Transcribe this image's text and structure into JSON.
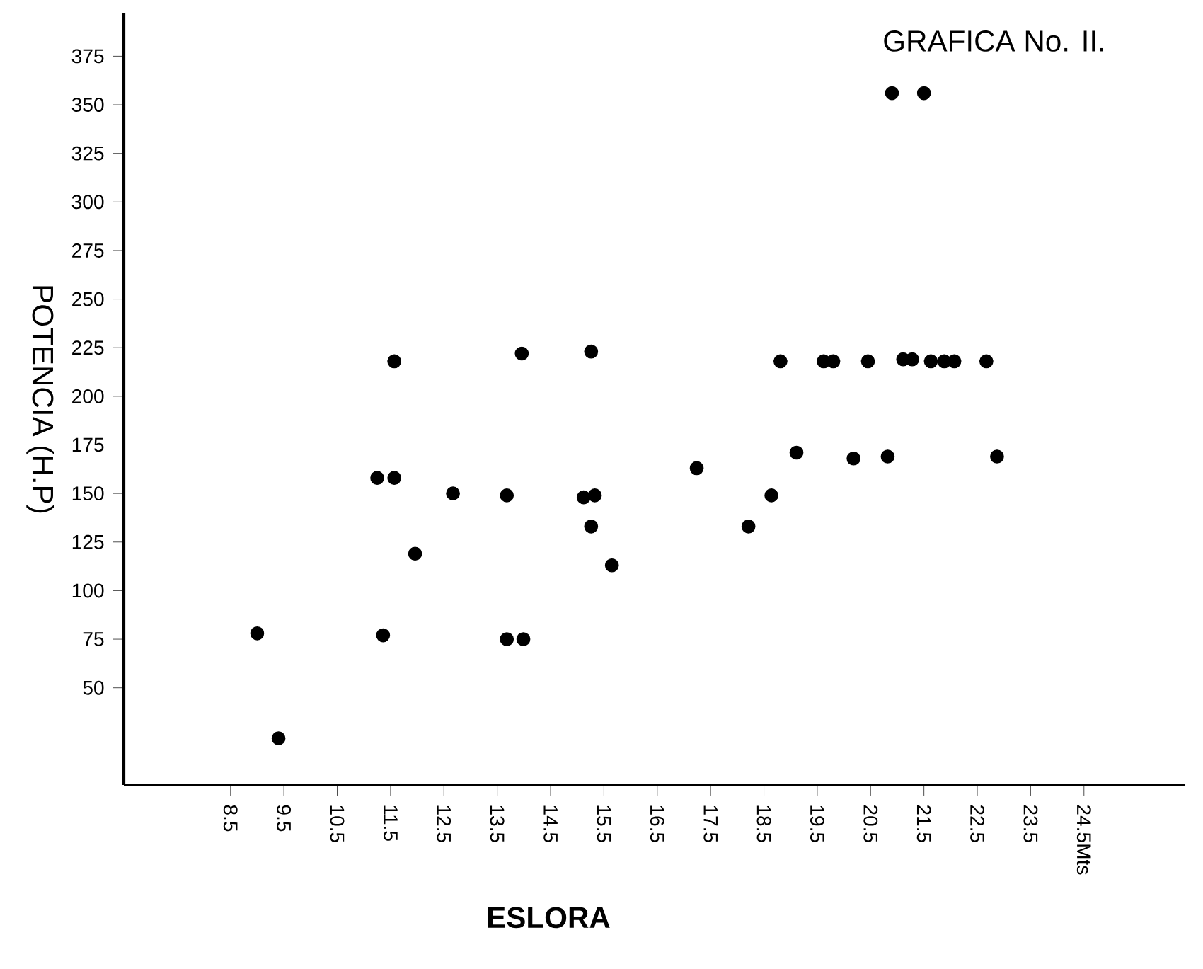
{
  "chart_data": {
    "type": "scatter",
    "title": "GRAFICA No. II.",
    "xlabel": "ESLORA",
    "ylabel": "POTENCIA (H.P)",
    "xlim": [
      6.5,
      26.4
    ],
    "ylim": [
      0,
      397
    ],
    "xticks": [
      8.5,
      9.5,
      10.5,
      11.5,
      12.5,
      13.5,
      14.5,
      15.5,
      16.5,
      17.5,
      18.5,
      19.5,
      20.5,
      21.5,
      22.5,
      23.5,
      {
        "value": 24.5,
        "label": "24.5Mts"
      }
    ],
    "yticks": [
      50,
      75,
      100,
      125,
      150,
      175,
      200,
      225,
      250,
      275,
      300,
      325,
      350,
      375
    ],
    "series": [
      {
        "color": "#000000",
        "x": [
          9.0,
          9.4,
          11.25,
          11.36,
          11.57,
          11.57,
          11.96,
          12.67,
          13.68,
          13.68,
          13.99,
          13.96,
          15.12,
          15.26,
          15.26,
          15.33,
          15.65,
          17.24,
          18.21,
          18.64,
          18.81,
          19.11,
          19.62,
          19.8,
          20.18,
          20.45,
          20.82,
          20.9,
          21.11,
          21.28,
          21.5,
          21.63,
          21.88,
          22.07,
          22.67,
          22.87
        ],
        "values": [
          78,
          24,
          158,
          77,
          218,
          158,
          119,
          150,
          149,
          75,
          75,
          222,
          148,
          223,
          133,
          149,
          113,
          163,
          133,
          149,
          218,
          171,
          218,
          218,
          168,
          218,
          169,
          356,
          219,
          219,
          356,
          218,
          218,
          218,
          218,
          169
        ]
      }
    ]
  }
}
